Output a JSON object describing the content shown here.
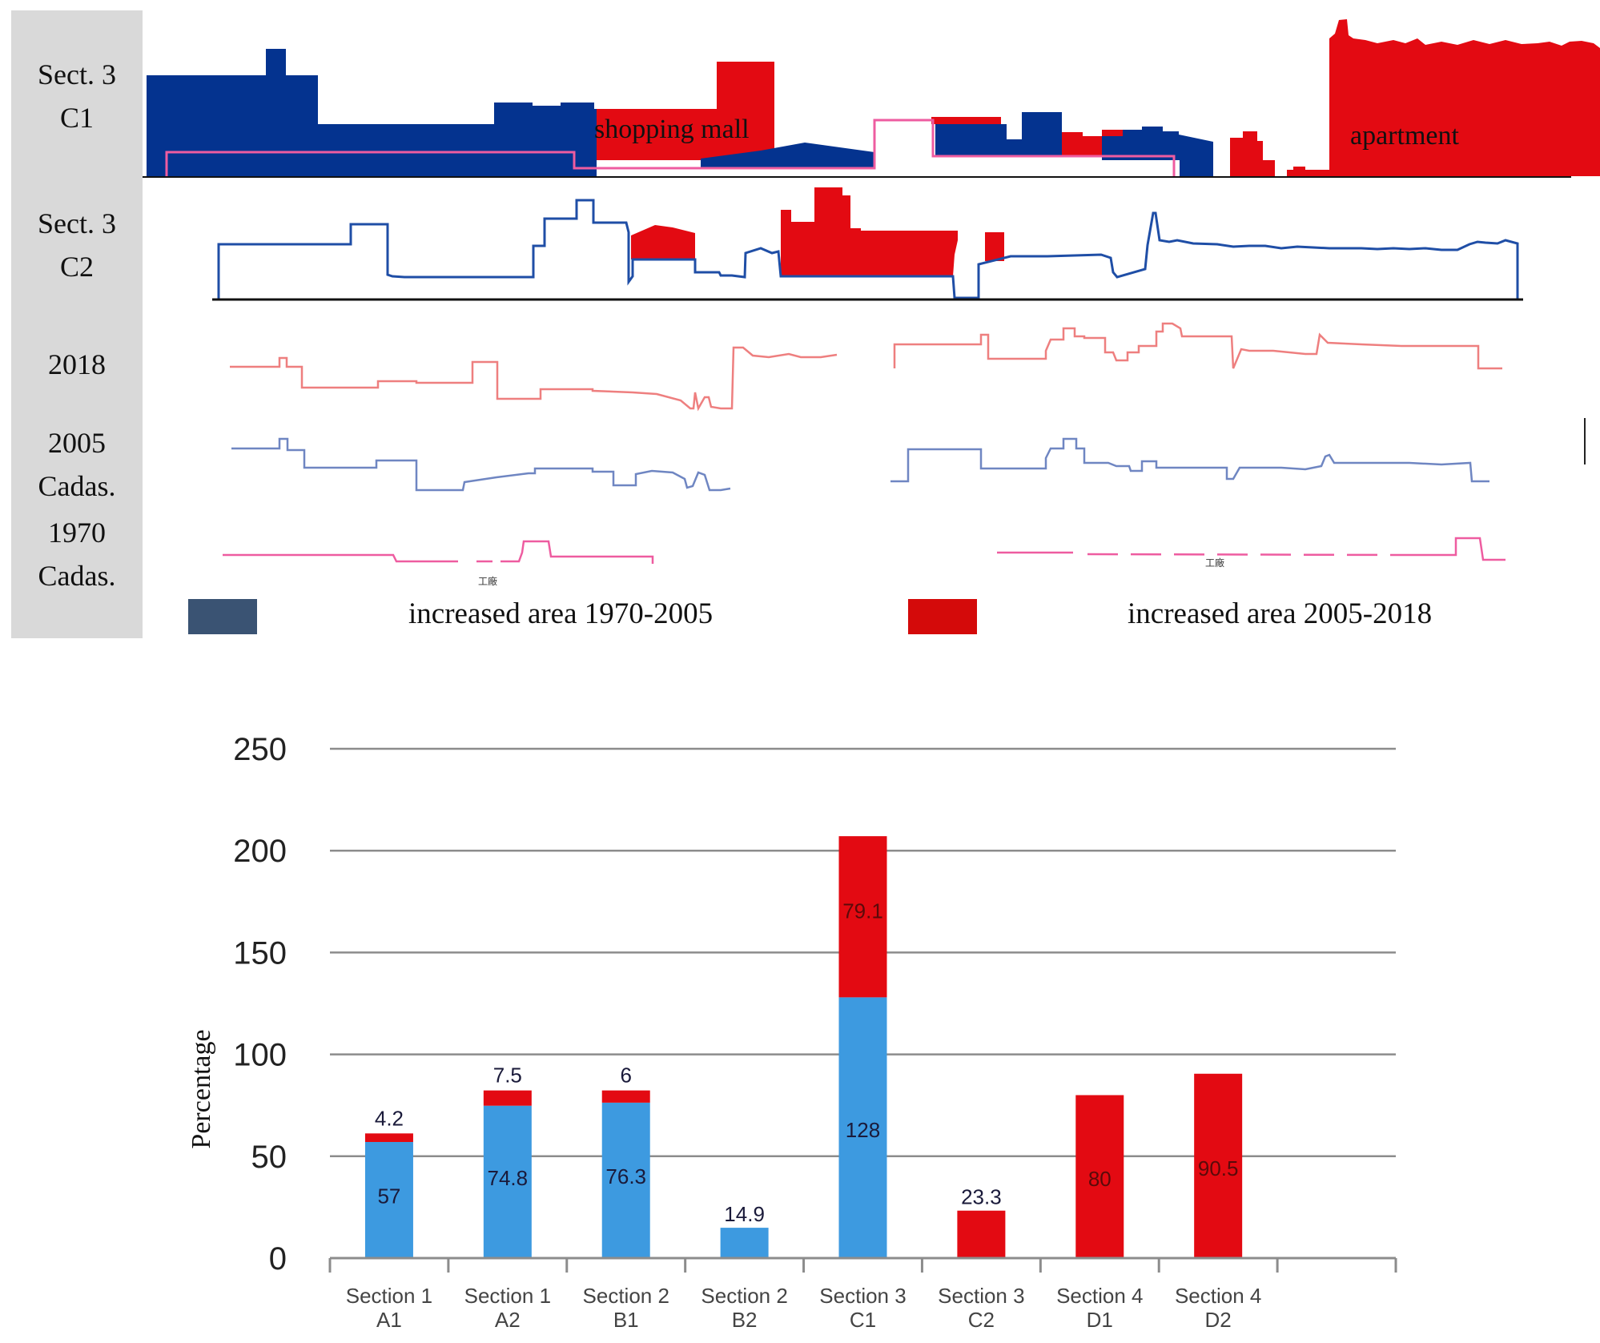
{
  "profile_panel": {
    "rows": [
      {
        "label": "Sect. 3\nC1"
      },
      {
        "label": "Sect. 3\nC2"
      },
      {
        "label": "2018"
      },
      {
        "label": "2005\nCadas."
      },
      {
        "label": "1970\nCadas."
      }
    ],
    "annotations": {
      "shopping_mall": "shopping mall",
      "apartment": "apartment",
      "factory_a": "工廠",
      "factory_b": "工廠"
    },
    "legend": [
      {
        "label": "increased area 1970-2005",
        "color": "#3a5373"
      },
      {
        "label": "increased area 2005-2018",
        "color": "#d40a0a"
      }
    ],
    "colors": {
      "blue_fill": "#04338f",
      "red_fill": "#e30a12",
      "outline_2018": "#ee7f7f",
      "outline_2005": "#6f86c2",
      "outline_1970": "#ee5ca0"
    }
  },
  "chart_data": {
    "type": "bar",
    "stacked": true,
    "ylabel": "Percentage",
    "xlabel": "",
    "ylim": [
      0,
      250
    ],
    "yticks": [
      "0",
      "50",
      "100",
      "150",
      "200",
      "250"
    ],
    "grid": true,
    "categories": [
      {
        "line1": "Section 1",
        "line2": "A1"
      },
      {
        "line1": "Section 1",
        "line2": "A2"
      },
      {
        "line1": "Section 2",
        "line2": "B1"
      },
      {
        "line1": "Section 2",
        "line2": "B2"
      },
      {
        "line1": "Section 3",
        "line2": "C1"
      },
      {
        "line1": "Section 3",
        "line2": "C2"
      },
      {
        "line1": "Section 4",
        "line2": "D1"
      },
      {
        "line1": "Section 4",
        "line2": "D2"
      }
    ],
    "series": [
      {
        "name": "increased area 1970-2005",
        "color": "#3d9ae0",
        "values": [
          57,
          74.8,
          76.3,
          14.9,
          128,
          0,
          0,
          0
        ],
        "labels": [
          "57",
          "74.8",
          "76.3",
          "14.9",
          "128",
          "",
          "",
          ""
        ]
      },
      {
        "name": "increased area 2005-2018",
        "color": "#e30a12",
        "values": [
          4.2,
          7.5,
          6,
          0,
          79.1,
          23.3,
          80,
          90.5
        ],
        "labels": [
          "4.2",
          "7.5",
          "6",
          "",
          "79.1",
          "23.3",
          "80",
          "90.5"
        ]
      }
    ]
  }
}
